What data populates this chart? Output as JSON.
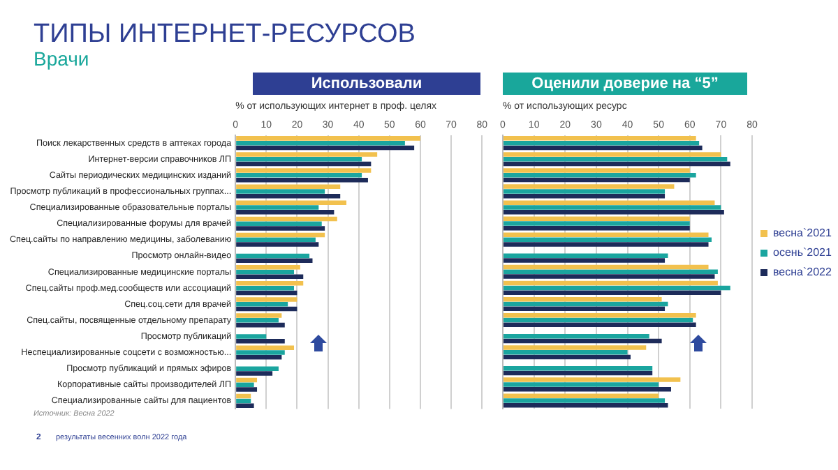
{
  "chart_data": [
    {
      "type": "bar",
      "orientation": "horizontal",
      "title": "Использовали",
      "xlabel": "% от использующих интернет в проф. целях",
      "annotations": [
        "ТИПЫ ИНТЕРНЕТ-РЕСУРСОВ",
        "Врачи",
        "Источник: Весна 2022",
        "2",
        "результаты весенних волн 2022 года"
      ],
      "categories": [
        "Поиск лекарственных средств в аптеках города",
        "Интернет-версии справочников ЛП",
        "Сайты периодических медицинских изданий",
        "Просмотр публикаций в профессиональных группах...",
        "Специализированные образовательные порталы",
        "Специализированные форумы для врачей",
        "Спец.сайты по направлению медицины, заболеванию",
        "Просмотр онлайн-видео",
        "Специализированные медицинские порталы",
        "Спец.сайты проф.мед.сообществ или ассоциаций",
        "Спец.соц.сети для врачей",
        "Спец.сайты, посвященные отдельному препарату",
        "Просмотр публикаций",
        "Неспециализированные соцсети с возможностью...",
        "Просмотр публикаций и прямых эфиров",
        "Корпоративные сайты производителей ЛП",
        "Специализированные сайты для пациентов"
      ],
      "series": [
        {
          "color": "#f2c14e",
          "values": [
            60,
            46,
            44,
            34,
            36,
            33,
            29,
            null,
            21,
            22,
            20,
            15,
            null,
            19,
            null,
            7,
            5
          ]
        },
        {
          "color": "#1aa59f",
          "values": [
            55,
            41,
            41,
            29,
            27,
            28,
            26,
            24,
            19,
            19,
            17,
            14,
            10,
            16,
            14,
            6,
            5
          ]
        },
        {
          "color": "#1d2b5a",
          "values": [
            58,
            44,
            43,
            34,
            32,
            29,
            27,
            25,
            22,
            20,
            20,
            16,
            16,
            15,
            12,
            7,
            6
          ]
        }
      ],
      "xlim": [
        0,
        80
      ],
      "xticks": [
        0,
        10,
        20,
        30,
        40,
        50,
        60,
        70,
        80
      ],
      "grid": "x",
      "legend": false
    },
    {
      "type": "bar",
      "orientation": "horizontal",
      "title": "Оценили доверие на “5”",
      "xlabel": "% от использующих ресурс",
      "categories": [
        null,
        null,
        null,
        null,
        null,
        null,
        null,
        null,
        null,
        null,
        null,
        null,
        null,
        null,
        null,
        null,
        null
      ],
      "series": [
        {
          "name": "весна`2021",
          "color": "#f2c14e",
          "values": [
            62,
            70,
            60,
            55,
            68,
            60,
            66,
            null,
            66,
            69,
            51,
            62,
            null,
            46,
            null,
            57,
            50
          ]
        },
        {
          "name": "осень`2021",
          "color": "#1aa59f",
          "values": [
            63,
            72,
            62,
            52,
            70,
            60,
            67,
            53,
            69,
            73,
            53,
            61,
            47,
            40,
            48,
            50,
            52
          ]
        },
        {
          "name": "весна`2022",
          "color": "#1d2b5a",
          "values": [
            64,
            73,
            60,
            52,
            71,
            60,
            66,
            52,
            68,
            70,
            52,
            62,
            51,
            41,
            48,
            54,
            53
          ]
        }
      ],
      "xlim": [
        0,
        80
      ],
      "xticks": [
        0,
        10,
        20,
        30,
        40,
        50,
        60,
        70,
        80
      ],
      "grid": "x",
      "legend": "right",
      "tick_labels": "x"
    }
  ]
}
